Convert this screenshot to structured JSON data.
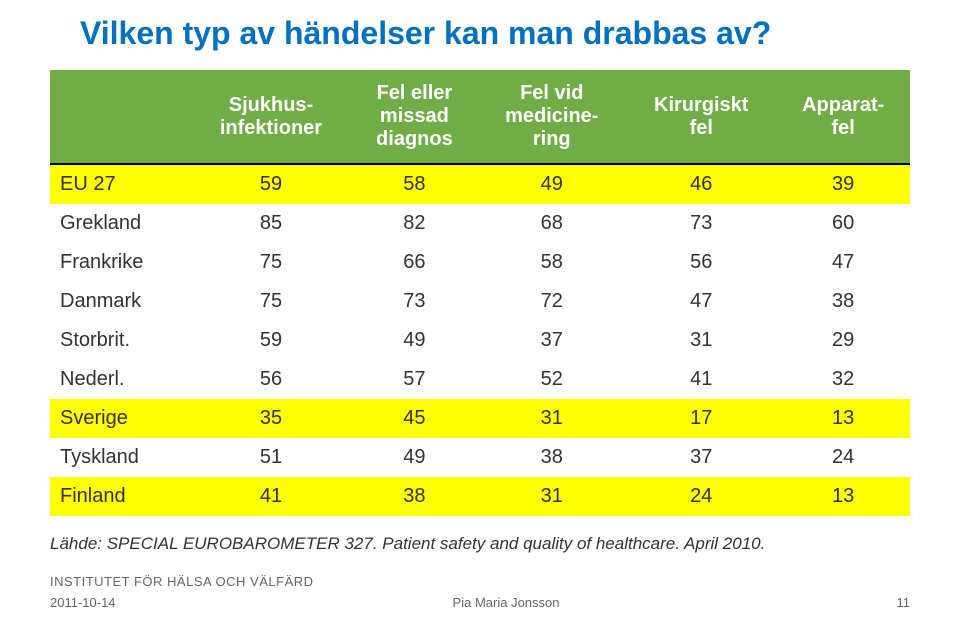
{
  "title": "Vilken typ av händelser kan man drabbas av?",
  "title_color": "#0070c0",
  "title_fontsize": 32,
  "table": {
    "header_bg": "#70ad47",
    "header_fg": "#ffffff",
    "highlight_bg": "#ffff00",
    "columns": [
      "",
      "Sjukhus-infektioner",
      "Fel eller missad diagnos",
      "Fel vid medicine-ring",
      "Kirurgiskt fel",
      "Apparat-fel"
    ],
    "rows": [
      {
        "label": "EU 27",
        "values": [
          "59",
          "58",
          "49",
          "46",
          "39"
        ],
        "highlight": true
      },
      {
        "label": "Grekland",
        "values": [
          "85",
          "82",
          "68",
          "73",
          "60"
        ],
        "highlight": false
      },
      {
        "label": "Frankrike",
        "values": [
          "75",
          "66",
          "58",
          "56",
          "47"
        ],
        "highlight": false
      },
      {
        "label": "Danmark",
        "values": [
          "75",
          "73",
          "72",
          "47",
          "38"
        ],
        "highlight": false
      },
      {
        "label": "Storbrit.",
        "values": [
          "59",
          "49",
          "37",
          "31",
          "29"
        ],
        "highlight": false
      },
      {
        "label": "Nederl.",
        "values": [
          "56",
          "57",
          "52",
          "41",
          "32"
        ],
        "highlight": false
      },
      {
        "label": "Sverige",
        "values": [
          "35",
          "45",
          "31",
          "17",
          "13"
        ],
        "highlight": true
      },
      {
        "label": "Tyskland",
        "values": [
          "51",
          "49",
          "38",
          "37",
          "24"
        ],
        "highlight": false
      },
      {
        "label": "Finland",
        "values": [
          "41",
          "38",
          "31",
          "24",
          "13"
        ],
        "highlight": true
      }
    ]
  },
  "source": "Lähde: SPECIAL EUROBAROMETER 327. Patient safety and quality of healthcare. April 2010.",
  "institute": "INSTITUTET FÖR HÄLSA OCH VÄLFÄRD",
  "footer": {
    "date": "2011-10-14",
    "author": "Pia Maria Jonsson",
    "page": "11"
  }
}
